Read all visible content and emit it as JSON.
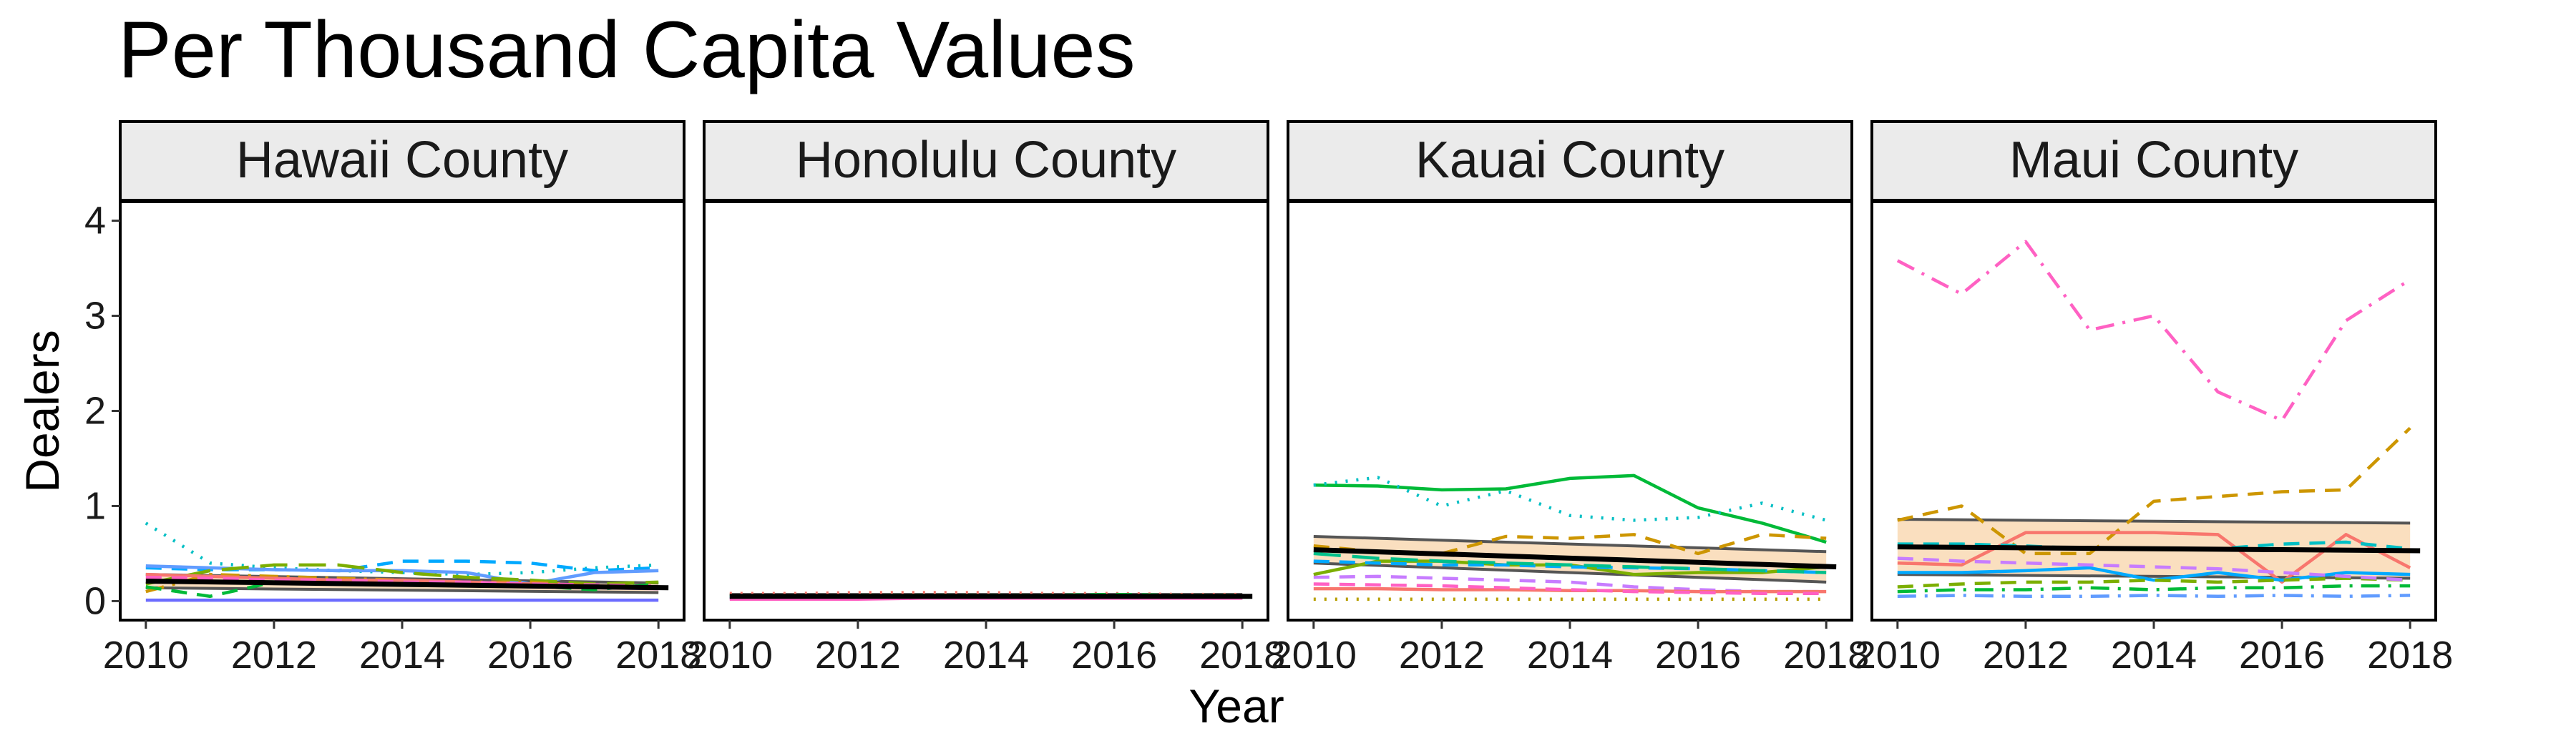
{
  "chart_data": {
    "type": "line",
    "title": "Per Thousand Capita Values",
    "xlabel": "Year",
    "ylabel": "Dealers",
    "xlim": [
      2009.6,
      2018.4
    ],
    "ylim": [
      -0.2,
      4.2
    ],
    "x_ticks": [
      2010,
      2012,
      2014,
      2016,
      2018
    ],
    "y_ticks": [
      0,
      1,
      2,
      3,
      4
    ],
    "x_tick_labels": [
      "2010",
      "2012",
      "2014",
      "2016",
      "2018"
    ],
    "y_tick_labels": [
      "0",
      "1",
      "2",
      "3",
      "4"
    ],
    "grid": false,
    "legend": "none",
    "x": [
      2010,
      2011,
      2012,
      2013,
      2014,
      2015,
      2016,
      2017,
      2018
    ],
    "panels": [
      {
        "name": "Hawaii County",
        "series": [
          {
            "color": "#00BFC4",
            "dash": "dot",
            "values": [
              0.82,
              0.4,
              0.35,
              0.32,
              0.3,
              0.28,
              0.3,
              0.35,
              0.38
            ]
          },
          {
            "color": "#00A9FF",
            "dash": "dash",
            "values": [
              0.35,
              0.33,
              0.33,
              0.32,
              0.42,
              0.42,
              0.4,
              0.32,
              0.35
            ]
          },
          {
            "color": "#619CFF",
            "dash": "solid",
            "values": [
              0.37,
              0.35,
              0.33,
              0.32,
              0.32,
              0.3,
              0.18,
              0.3,
              0.32
            ]
          },
          {
            "color": "#7CAE00",
            "dash": "longdash",
            "values": [
              0.18,
              0.32,
              0.38,
              0.38,
              0.3,
              0.25,
              0.22,
              0.18,
              0.2
            ]
          },
          {
            "color": "#CD9600",
            "dash": "dashdot",
            "values": [
              0.1,
              0.28,
              0.26,
              0.24,
              0.22,
              0.2,
              0.2,
              0.16,
              0.14
            ]
          },
          {
            "color": "#F8766D",
            "dash": "solid",
            "values": [
              0.28,
              0.26,
              0.24,
              0.22,
              0.22,
              0.2,
              0.18,
              0.16,
              0.15
            ]
          },
          {
            "color": "#FF61C3",
            "dash": "dash",
            "values": [
              0.25,
              0.24,
              0.22,
              0.22,
              0.2,
              0.2,
              0.18,
              0.17,
              0.16
            ]
          },
          {
            "color": "#00BA38",
            "dash": "dash",
            "values": [
              0.15,
              0.05,
              0.2,
              0.19,
              0.18,
              0.17,
              0.16,
              0.12,
              0.18
            ]
          },
          {
            "color": "#C77CFF",
            "dash": "solid",
            "values": [
              0.2,
              0.2,
              0.19,
              0.18,
              0.17,
              0.16,
              0.15,
              0.14,
              0.13
            ]
          },
          {
            "color": "#6B6BFF",
            "dash": "solid",
            "values": [
              0.01,
              0.01,
              0.01,
              0.01,
              0.01,
              0.01,
              0.01,
              0.01,
              0.01
            ]
          }
        ],
        "band": {
          "lower": [
            0.14,
            0.09
          ],
          "upper": [
            0.28,
            0.19
          ]
        },
        "trend": [
          0.21,
          0.14
        ]
      },
      {
        "name": "Honolulu County",
        "series": [
          {
            "color": "#F8766D",
            "dash": "dot",
            "values": [
              0.08,
              0.08,
              0.09,
              0.09,
              0.09,
              0.08,
              0.08,
              0.07,
              0.07
            ]
          },
          {
            "color": "#00BA38",
            "dash": "dash",
            "values": [
              0.05,
              0.05,
              0.06,
              0.06,
              0.06,
              0.06,
              0.07,
              0.06,
              0.06
            ]
          },
          {
            "color": "#619CFF",
            "dash": "solid",
            "values": [
              0.04,
              0.04,
              0.04,
              0.05,
              0.05,
              0.05,
              0.05,
              0.05,
              0.05
            ]
          },
          {
            "color": "#FF61C3",
            "dash": "solid",
            "values": [
              0.02,
              0.02,
              0.02,
              0.03,
              0.03,
              0.03,
              0.03,
              0.03,
              0.03
            ]
          }
        ],
        "band": {
          "lower": [
            0.03,
            0.03
          ],
          "upper": [
            0.07,
            0.07
          ]
        },
        "trend": [
          0.05,
          0.05
        ]
      },
      {
        "name": "Kauai County",
        "series": [
          {
            "color": "#00BA38",
            "dash": "solid",
            "values": [
              1.22,
              1.21,
              1.17,
              1.18,
              1.29,
              1.32,
              0.98,
              0.82,
              0.62
            ]
          },
          {
            "color": "#00BFC4",
            "dash": "dot",
            "values": [
              1.22,
              1.3,
              1.0,
              1.16,
              0.9,
              0.85,
              0.88,
              1.03,
              0.85
            ]
          },
          {
            "color": "#CD9600",
            "dash": "dash",
            "values": [
              0.58,
              0.52,
              0.5,
              0.68,
              0.66,
              0.7,
              0.5,
              0.7,
              0.66
            ]
          },
          {
            "color": "#7CAE00",
            "dash": "solid",
            "values": [
              0.28,
              0.42,
              0.42,
              0.38,
              0.38,
              0.28,
              0.3,
              0.3,
              0.36
            ]
          },
          {
            "color": "#00A9FF",
            "dash": "dash",
            "values": [
              0.42,
              0.4,
              0.38,
              0.38,
              0.36,
              0.35,
              0.34,
              0.32,
              0.3
            ]
          },
          {
            "color": "#C77CFF",
            "dash": "dash",
            "values": [
              0.25,
              0.26,
              0.24,
              0.22,
              0.2,
              0.15,
              0.12,
              0.1,
              0.1
            ]
          },
          {
            "color": "#F8766D",
            "dash": "solid",
            "values": [
              0.13,
              0.13,
              0.12,
              0.12,
              0.11,
              0.11,
              0.1,
              0.1,
              0.1
            ]
          },
          {
            "color": "#FF61C3",
            "dash": "dash",
            "values": [
              0.18,
              0.17,
              0.16,
              0.14,
              0.12,
              0.1,
              0.09,
              0.08,
              0.08
            ]
          },
          {
            "color": "#00C08B",
            "dash": "longdash",
            "values": [
              0.5,
              0.45,
              0.42,
              0.4,
              0.38,
              0.36,
              0.34,
              0.32,
              0.3
            ]
          },
          {
            "color": "#B79F00",
            "dash": "dot",
            "values": [
              0.02,
              0.02,
              0.02,
              0.02,
              0.02,
              0.02,
              0.02,
              0.02,
              0.02
            ]
          }
        ],
        "band": {
          "lower": [
            0.4,
            0.2
          ],
          "upper": [
            0.68,
            0.52
          ]
        },
        "trend": [
          0.54,
          0.36
        ]
      },
      {
        "name": "Maui County",
        "series": [
          {
            "color": "#FF61C3",
            "dash": "dashdot",
            "values": [
              3.58,
              3.23,
              3.78,
              2.85,
              3.0,
              2.2,
              1.9,
              2.95,
              3.38
            ]
          },
          {
            "color": "#CD9600",
            "dash": "dash",
            "values": [
              0.85,
              1.0,
              0.5,
              0.5,
              1.05,
              1.1,
              1.15,
              1.17,
              1.82
            ]
          },
          {
            "color": "#F8766D",
            "dash": "solid",
            "values": [
              0.4,
              0.38,
              0.72,
              0.72,
              0.72,
              0.7,
              0.2,
              0.7,
              0.35
            ]
          },
          {
            "color": "#00BFC4",
            "dash": "dash",
            "values": [
              0.6,
              0.6,
              0.58,
              0.55,
              0.55,
              0.55,
              0.6,
              0.62,
              0.55
            ]
          },
          {
            "color": "#00A9FF",
            "dash": "solid",
            "values": [
              0.3,
              0.3,
              0.32,
              0.35,
              0.22,
              0.3,
              0.22,
              0.3,
              0.28
            ]
          },
          {
            "color": "#7CAE00",
            "dash": "dash",
            "values": [
              0.15,
              0.18,
              0.2,
              0.2,
              0.22,
              0.2,
              0.22,
              0.24,
              0.22
            ]
          },
          {
            "color": "#00BA38",
            "dash": "dashdot",
            "values": [
              0.1,
              0.12,
              0.12,
              0.14,
              0.12,
              0.14,
              0.14,
              0.16,
              0.16
            ]
          },
          {
            "color": "#C77CFF",
            "dash": "dash",
            "values": [
              0.45,
              0.42,
              0.4,
              0.38,
              0.36,
              0.34,
              0.3,
              0.26,
              0.22
            ]
          },
          {
            "color": "#619CFF",
            "dash": "dashdot",
            "values": [
              0.05,
              0.06,
              0.05,
              0.05,
              0.06,
              0.05,
              0.06,
              0.05,
              0.06
            ]
          }
        ],
        "band": {
          "lower": [
            0.28,
            0.24
          ],
          "upper": [
            0.86,
            0.82
          ]
        },
        "trend": [
          0.57,
          0.53
        ]
      }
    ]
  }
}
